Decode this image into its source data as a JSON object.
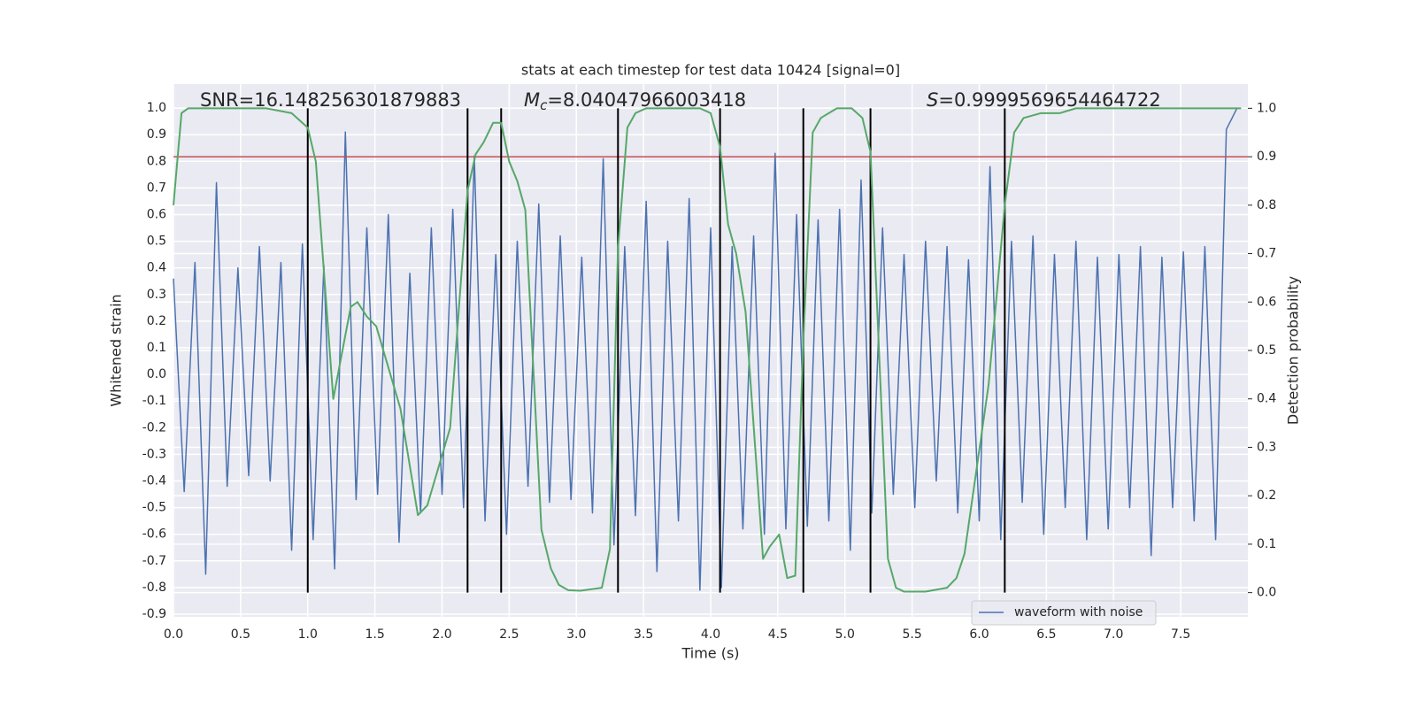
{
  "chart_data": {
    "type": "line",
    "title": "stats at each timestep for test data 10424 [signal=0]",
    "xlabel": "Time (s)",
    "ylabel": "Whitened strain",
    "y2label": "Detection probability",
    "annotations": [
      {
        "text": "SNR=16.148256301879883"
      },
      {
        "symbol": "M",
        "sub": "c",
        "text": "=8.04047966003418"
      },
      {
        "symbol": "S",
        "text": "=0.9999569654464722"
      }
    ],
    "xlim": [
      0,
      8
    ],
    "ylim": [
      -0.91,
      1.09
    ],
    "y2lim": [
      -0.05,
      1.05
    ],
    "xticks": [
      {
        "value": 0,
        "label": "0.0"
      },
      0.5,
      {
        "value": 1,
        "label": "1.0"
      },
      1.5,
      {
        "value": 2,
        "label": "2.0"
      },
      2.5,
      {
        "value": 3,
        "label": "3.0"
      },
      3.5,
      {
        "value": 4,
        "label": "4.0"
      },
      4.5,
      {
        "value": 5,
        "label": "5.0"
      },
      5.5,
      {
        "value": 6,
        "label": "6.0"
      },
      6.5,
      {
        "value": 7,
        "label": "7.0"
      },
      7.5
    ],
    "yticks": [
      -0.9,
      -0.8,
      -0.7,
      -0.6,
      -0.5,
      -0.4,
      -0.3,
      -0.2,
      -0.1,
      {
        "value": 0,
        "label": "0.0"
      },
      0.1,
      0.2,
      0.3,
      0.4,
      0.5,
      0.6,
      0.7,
      0.8,
      0.9,
      {
        "value": 1,
        "label": "1.0"
      }
    ],
    "y2ticks": [
      {
        "value": 0,
        "label": "0.0"
      },
      0.1,
      0.2,
      0.3,
      0.4,
      0.5,
      0.6,
      0.7,
      0.8,
      0.9,
      {
        "value": 1,
        "label": "1.0"
      }
    ],
    "grid": true,
    "legend": "lower right",
    "series": [
      {
        "name": "waveform with noise",
        "color": "#4c72b0",
        "x": [
          0,
          0.08,
          0.16,
          0.24,
          0.32,
          0.4,
          0.48,
          0.56,
          0.64,
          0.72,
          0.8,
          0.88,
          0.96,
          1.04,
          1.12,
          1.2,
          1.28,
          1.36,
          1.44,
          1.52,
          1.6,
          1.68,
          1.76,
          1.84,
          1.92,
          2,
          2.08,
          2.16,
          2.24,
          2.32,
          2.4,
          2.48,
          2.56,
          2.64,
          2.72,
          2.8,
          2.88,
          2.96,
          3.04,
          3.12,
          3.2,
          3.28,
          3.36,
          3.44,
          3.52,
          3.6,
          3.68,
          3.76,
          3.84,
          3.92,
          4,
          4.08,
          4.16,
          4.24,
          4.32,
          4.4,
          4.48,
          4.56,
          4.64,
          4.72,
          4.8,
          4.88,
          4.96,
          5.04,
          5.12,
          5.2,
          5.28,
          5.36,
          5.44,
          5.52,
          5.6,
          5.68,
          5.76,
          5.84,
          5.92,
          6,
          6.08,
          6.16,
          6.24,
          6.32,
          6.4,
          6.48,
          6.56,
          6.64,
          6.72,
          6.8,
          6.88,
          6.96,
          7.04,
          7.12,
          7.2,
          7.28,
          7.36,
          7.44,
          7.52,
          7.6,
          7.68,
          7.76,
          7.84,
          7.92
        ],
        "values": [
          0.36,
          -0.44,
          0.42,
          -0.75,
          0.72,
          -0.42,
          0.4,
          -0.38,
          0.48,
          -0.4,
          0.42,
          -0.66,
          0.49,
          -0.62,
          0.41,
          -0.73,
          0.91,
          -0.47,
          0.55,
          -0.45,
          0.6,
          -0.63,
          0.38,
          -0.52,
          0.55,
          -0.45,
          0.62,
          -0.5,
          0.82,
          -0.55,
          0.45,
          -0.6,
          0.5,
          -0.42,
          0.64,
          -0.48,
          0.52,
          -0.47,
          0.44,
          -0.52,
          0.81,
          -0.64,
          0.48,
          -0.53,
          0.65,
          -0.74,
          0.5,
          -0.55,
          0.66,
          -0.81,
          0.55,
          -0.8,
          0.48,
          -0.58,
          0.52,
          -0.6,
          0.83,
          -0.58,
          0.6,
          -0.57,
          0.58,
          -0.55,
          0.62,
          -0.66,
          0.73,
          -0.52,
          0.55,
          -0.45,
          0.45,
          -0.5,
          0.5,
          -0.4,
          0.48,
          -0.52,
          0.43,
          -0.55,
          0.78,
          -0.62,
          0.5,
          -0.48,
          0.52,
          -0.6,
          0.45,
          -0.5,
          0.5,
          -0.62,
          0.44,
          -0.58,
          0.45,
          -0.5,
          0.48,
          -0.68,
          0.44,
          -0.5,
          0.46,
          -0.55,
          0.48,
          -0.62,
          0.92,
          1.0
        ]
      }
    ],
    "probability": {
      "color": "#55a868",
      "axis": "y2",
      "x": [
        0,
        0.06,
        0.11,
        0.69,
        0.88,
        1.0,
        1.06,
        1.19,
        1.32,
        1.37,
        1.44,
        1.51,
        1.69,
        1.82,
        1.89,
        2.06,
        2.19,
        2.25,
        2.31,
        2.38,
        2.44,
        2.5,
        2.56,
        2.62,
        2.74,
        2.81,
        2.87,
        2.94,
        3.03,
        3.19,
        3.25,
        3.31,
        3.38,
        3.44,
        3.52,
        3.92,
        4.0,
        4.07,
        4.13,
        4.19,
        4.26,
        4.39,
        4.44,
        4.51,
        4.57,
        4.63,
        4.69,
        4.76,
        4.82,
        4.94,
        5.05,
        5.13,
        5.19,
        5.32,
        5.38,
        5.44,
        5.6,
        5.76,
        5.83,
        5.89,
        6.07,
        6.19,
        6.26,
        6.33,
        6.46,
        6.6,
        6.72,
        7.35,
        7.45,
        7.95
      ],
      "values": [
        0.8,
        0.99,
        1.0,
        1.0,
        0.99,
        0.96,
        0.89,
        0.4,
        0.59,
        0.6,
        0.57,
        0.55,
        0.38,
        0.16,
        0.18,
        0.34,
        0.83,
        0.905,
        0.93,
        0.97,
        0.97,
        0.89,
        0.85,
        0.79,
        0.13,
        0.05,
        0.016,
        0.005,
        0.004,
        0.01,
        0.09,
        0.71,
        0.96,
        0.99,
        1.0,
        1.0,
        0.99,
        0.92,
        0.76,
        0.7,
        0.58,
        0.07,
        0.095,
        0.12,
        0.03,
        0.035,
        0.52,
        0.95,
        0.98,
        1.0,
        1.0,
        0.98,
        0.91,
        0.07,
        0.01,
        0.002,
        0.002,
        0.01,
        0.03,
        0.08,
        0.43,
        0.8,
        0.95,
        0.98,
        0.99,
        0.99,
        1.0,
        1.0,
        1.0,
        1.0
      ]
    },
    "hline": {
      "value": 0.9,
      "axis": "y2",
      "color": "#c44e52"
    },
    "vlines": {
      "x": [
        1.0,
        2.19,
        2.44,
        3.31,
        4.07,
        4.69,
        5.19,
        6.19
      ],
      "axis": "y2",
      "y2_span": [
        0,
        1
      ],
      "color": "#000000"
    }
  }
}
